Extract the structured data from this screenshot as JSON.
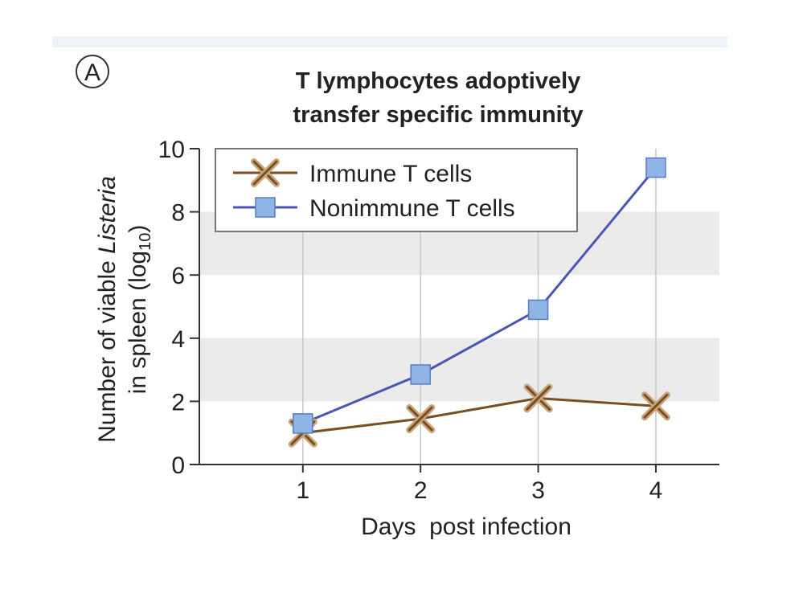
{
  "chart_data": {
    "type": "line",
    "panel_label": "A",
    "title": [
      "T lymphocytes adoptively",
      "transfer specific immunity"
    ],
    "x_label": "Days  post infection",
    "y_label": {
      "line1": "Number of viable ",
      "line1_italic": "Listeria",
      "line2": "in spleen (log",
      "line2_sub": "10",
      "line2_end": ")"
    },
    "x": [
      1,
      2,
      3,
      4
    ],
    "xlim": [
      0.12,
      4.54
    ],
    "xticks": [
      1,
      2,
      3,
      4
    ],
    "ylim": [
      0,
      10
    ],
    "yticks": [
      0,
      2,
      4,
      6,
      8,
      10
    ],
    "bands": [
      [
        2,
        4
      ],
      [
        6,
        8
      ]
    ],
    "xgrid": true,
    "legend": "top-left",
    "series": [
      {
        "name": "Immune T cells",
        "color": "#7a4e22",
        "marker": "x",
        "values": [
          1.0,
          1.45,
          2.1,
          1.85
        ]
      },
      {
        "name": "Nonimmune T cells",
        "color": "#4a56b3",
        "marker": "square",
        "values": [
          1.3,
          2.85,
          4.9,
          9.4
        ]
      }
    ]
  }
}
